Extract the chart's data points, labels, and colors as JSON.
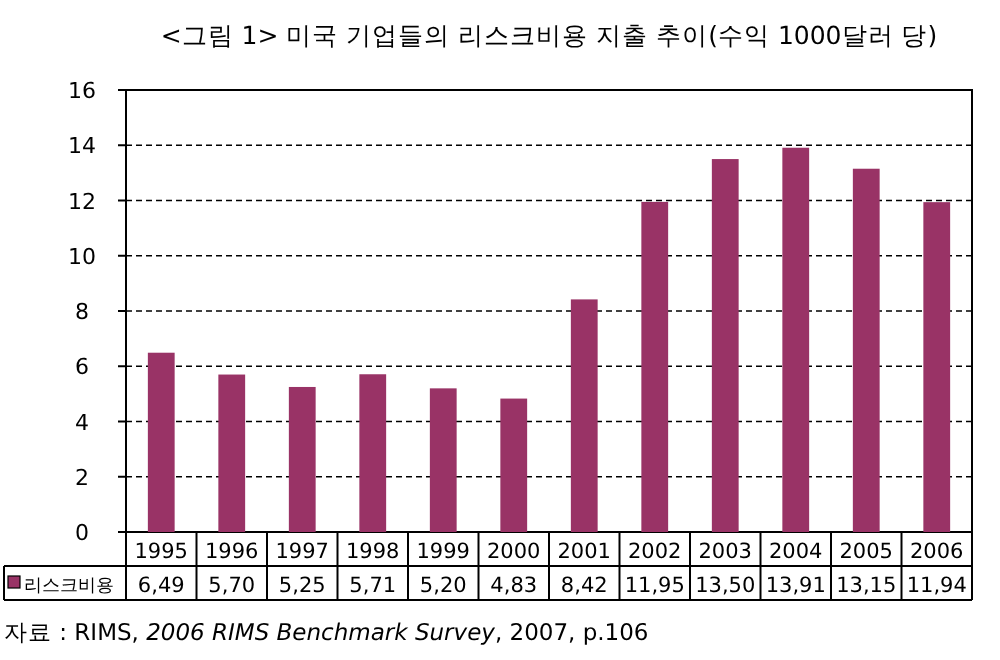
{
  "chart_data": {
    "type": "bar",
    "title": "<그림 1> 미국 기업들의 리스크비용 지출 추이(수익 1000달러 당)",
    "categories": [
      "1995",
      "1996",
      "1997",
      "1998",
      "1999",
      "2000",
      "2001",
      "2002",
      "2003",
      "2004",
      "2005",
      "2006"
    ],
    "series": [
      {
        "name": "리스크비용",
        "color": "#993366",
        "values": [
          6.49,
          5.7,
          5.25,
          5.71,
          5.2,
          4.83,
          8.42,
          11.95,
          13.5,
          13.91,
          13.15,
          11.94
        ],
        "value_labels": [
          "6,49",
          "5,70",
          "5,25",
          "5,71",
          "5,20",
          "4,83",
          "8,42",
          "11,95",
          "13,50",
          "13,91",
          "13,15",
          "11,94"
        ]
      }
    ],
    "ylim": [
      0,
      16
    ],
    "yticks": [
      0,
      2,
      4,
      6,
      8,
      10,
      12,
      14,
      16
    ],
    "grid": "y",
    "legend": "bottom",
    "annotations": [
      "자료 : RIMS, *2006 RIMS Benchmark Survey*, 2007, p.106"
    ]
  }
}
